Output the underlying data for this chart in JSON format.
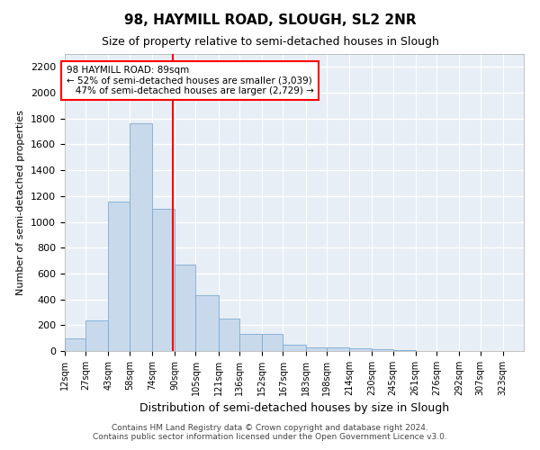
{
  "title": "98, HAYMILL ROAD, SLOUGH, SL2 2NR",
  "subtitle": "Size of property relative to semi-detached houses in Slough",
  "xlabel": "Distribution of semi-detached houses by size in Slough",
  "ylabel": "Number of semi-detached properties",
  "bin_edges": [
    12,
    27,
    43,
    58,
    74,
    90,
    105,
    121,
    136,
    152,
    167,
    183,
    198,
    214,
    230,
    245,
    261,
    276,
    292,
    307,
    323,
    338
  ],
  "bin_labels": [
    "12sqm",
    "27sqm",
    "43sqm",
    "58sqm",
    "74sqm",
    "90sqm",
    "105sqm",
    "121sqm",
    "136sqm",
    "152sqm",
    "167sqm",
    "183sqm",
    "198sqm",
    "214sqm",
    "230sqm",
    "245sqm",
    "261sqm",
    "276sqm",
    "292sqm",
    "307sqm",
    "323sqm"
  ],
  "bar_heights": [
    100,
    235,
    1160,
    1760,
    1100,
    670,
    430,
    250,
    130,
    130,
    50,
    30,
    30,
    20,
    15,
    5,
    2,
    0,
    0,
    0,
    0
  ],
  "bar_color": "#c9d9ec",
  "bar_edge_color": "#7aabd4",
  "property_size": 89,
  "annotation_text": "98 HAYMILL ROAD: 89sqm\n← 52% of semi-detached houses are smaller (3,039)\n   47% of semi-detached houses are larger (2,729) →",
  "annotation_box_color": "white",
  "annotation_box_edge_color": "red",
  "ylim": [
    0,
    2300
  ],
  "yticks": [
    0,
    200,
    400,
    600,
    800,
    1000,
    1200,
    1400,
    1600,
    1800,
    2000,
    2200
  ],
  "background_color": "#e8eef5",
  "grid_color": "white",
  "footer_line1": "Contains HM Land Registry data © Crown copyright and database right 2024.",
  "footer_line2": "Contains public sector information licensed under the Open Government Licence v3.0."
}
